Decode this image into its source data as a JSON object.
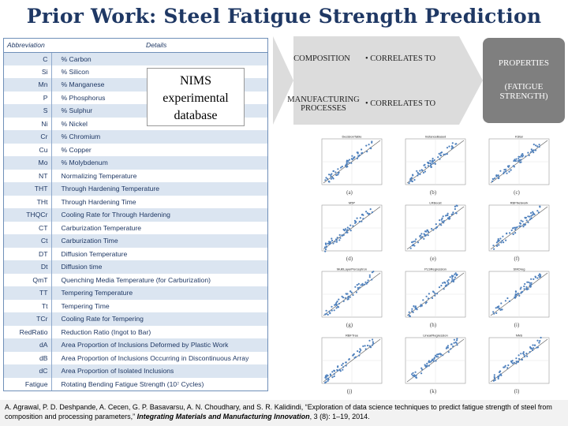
{
  "title": "Prior Work: Steel Fatigue Strength Prediction",
  "table": {
    "headers": {
      "abbreviation": "Abbreviation",
      "details": "Details"
    },
    "rows": [
      {
        "abbr": "C",
        "detail": "% Carbon"
      },
      {
        "abbr": "Si",
        "detail": "% Silicon"
      },
      {
        "abbr": "Mn",
        "detail": "% Manganese"
      },
      {
        "abbr": "P",
        "detail": "% Phosphorus"
      },
      {
        "abbr": "S",
        "detail": "% Sulphur"
      },
      {
        "abbr": "Ni",
        "detail": "% Nickel"
      },
      {
        "abbr": "Cr",
        "detail": "% Chromium"
      },
      {
        "abbr": "Cu",
        "detail": "% Copper"
      },
      {
        "abbr": "Mo",
        "detail": "% Molybdenum"
      },
      {
        "abbr": "NT",
        "detail": "Normalizing Temperature"
      },
      {
        "abbr": "THT",
        "detail": "Through Hardening Temperature"
      },
      {
        "abbr": "THt",
        "detail": "Through Hardening Time"
      },
      {
        "abbr": "THQCr",
        "detail": "Cooling Rate for Through Hardening"
      },
      {
        "abbr": "CT",
        "detail": "Carburization Temperature"
      },
      {
        "abbr": "Ct",
        "detail": "Carburization Time"
      },
      {
        "abbr": "DT",
        "detail": "Diffusion Temperature"
      },
      {
        "abbr": "Dt",
        "detail": "Diffusion time"
      },
      {
        "abbr": "QmT",
        "detail": "Quenching Media Temperature (for Carburization)"
      },
      {
        "abbr": "TT",
        "detail": "Tempering Temperature"
      },
      {
        "abbr": "Tt",
        "detail": "Tempering Time"
      },
      {
        "abbr": "TCr",
        "detail": "Cooling Rate for Tempering"
      },
      {
        "abbr": "RedRatio",
        "detail": "Reduction Ratio (Ingot to Bar)"
      },
      {
        "abbr": "dA",
        "detail": "Area Proportion of Inclusions Deformed by Plastic Work"
      },
      {
        "abbr": "dB",
        "detail": "Area Proportion of Inclusions Occurring in Discontinuous Array"
      },
      {
        "abbr": "dC",
        "detail": "Area Proportion of Isolated Inclusions"
      },
      {
        "abbr": "Fatigue",
        "detail": "Rotating Bending Fatigue Strength (10⁷ Cycles)"
      }
    ]
  },
  "nims": {
    "line1": "NIMS",
    "line2": "experimental",
    "line3": "database"
  },
  "flow": {
    "composition": "COMPOSITION",
    "processes_line1": "MANUFACTURING",
    "processes_line2": "PROCESSES",
    "correlates1": "• CORRELATES TO",
    "correlates2": "• CORRELATES TO",
    "properties": "PROPERTIES",
    "fatigue_line1": "(FATIGUE",
    "fatigue_line2": "STRENGTH)"
  },
  "plots": [
    {
      "title": "DecisionTable",
      "caption": "(a)"
    },
    {
      "title": "InstanceBased",
      "caption": "(b)"
    },
    {
      "title": "KStar",
      "caption": "(c)"
    },
    {
      "title": "M5P",
      "caption": "(d)"
    },
    {
      "title": "LRBoost",
      "caption": "(e)"
    },
    {
      "title": "RBFNetwork",
      "caption": "(f)"
    },
    {
      "title": "MultiLayerPerceptron",
      "caption": "(g)"
    },
    {
      "title": "PLSRegression",
      "caption": "(h)"
    },
    {
      "title": "SMOreg",
      "caption": "(i)"
    },
    {
      "title": "RBFTree",
      "caption": "(j)"
    },
    {
      "title": "LinearRegression",
      "caption": "(k)"
    },
    {
      "title": "NNS",
      "caption": "(l)"
    }
  ],
  "footer": {
    "text1": "A. Agrawal, P. D. Deshpande, A. Cecen, G. P. Basavarsu, A. N. Choudhary, and S. R. Kalidindi, “Exploration of data science techniques to predict fatigue strength of steel from composition and processing parameters,” ",
    "journal": "Integrating Materials and Manufacturing Innovation",
    "text2": ", 3 (8): 1–19, 2014."
  },
  "colors": {
    "title": "#1f3864",
    "table_stripe": "#dbe5f1",
    "arrow": "#dcdcdc",
    "properties_box": "#7f7f7f",
    "points": "#4f81bd"
  }
}
